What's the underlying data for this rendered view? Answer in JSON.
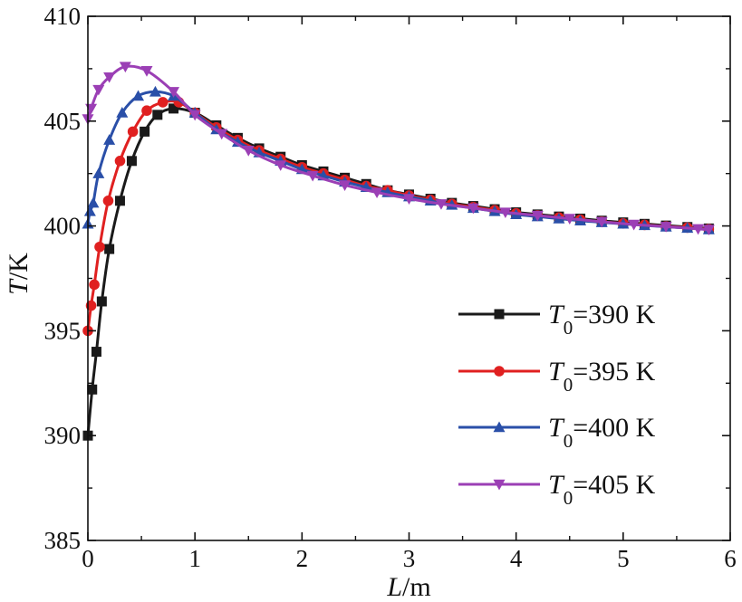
{
  "chart_data": {
    "type": "line",
    "title": "",
    "xlabel": {
      "symbol": "L",
      "unit": "/m"
    },
    "ylabel": {
      "symbol": "T",
      "unit": "/K"
    },
    "xlim": [
      0,
      6
    ],
    "ylim": [
      385,
      410
    ],
    "xticks": [
      "0",
      "1",
      "2",
      "3",
      "4",
      "5",
      "6"
    ],
    "yticks": [
      "385",
      "390",
      "395",
      "400",
      "405",
      "410"
    ],
    "grid": false,
    "legend_position": "right-center",
    "series": [
      {
        "name": "T0=390 K",
        "legend": {
          "symbol": "T",
          "subscript": "0",
          "text": "=390 K"
        },
        "color": "#1a1a1a",
        "marker": "square",
        "x": [
          0,
          0.04,
          0.08,
          0.13,
          0.2,
          0.3,
          0.41,
          0.53,
          0.65,
          0.8,
          1.0,
          1.2,
          1.4,
          1.6,
          1.8,
          2.0,
          2.2,
          2.4,
          2.6,
          2.8,
          3.0,
          3.2,
          3.4,
          3.6,
          3.8,
          4.0,
          4.2,
          4.4,
          4.6,
          4.8,
          5.0,
          5.2,
          5.4,
          5.6,
          5.8
        ],
        "y": [
          390.0,
          392.2,
          394.0,
          396.4,
          398.9,
          401.2,
          403.1,
          404.5,
          405.3,
          405.6,
          405.4,
          404.8,
          404.2,
          403.7,
          403.3,
          402.9,
          402.6,
          402.3,
          402.0,
          401.7,
          401.5,
          401.3,
          401.1,
          400.95,
          400.8,
          400.65,
          400.55,
          400.45,
          400.35,
          400.25,
          400.17,
          400.1,
          400.02,
          399.95,
          399.88
        ]
      },
      {
        "name": "T0=395 K",
        "legend": {
          "symbol": "T",
          "subscript": "0",
          "text": "=395 K"
        },
        "color": "#e02020",
        "marker": "circle",
        "x": [
          0,
          0.03,
          0.06,
          0.11,
          0.19,
          0.3,
          0.42,
          0.55,
          0.7,
          0.85,
          1.0,
          1.2,
          1.4,
          1.6,
          1.8,
          2.0,
          2.2,
          2.4,
          2.6,
          2.8,
          3.0,
          3.2,
          3.4,
          3.6,
          3.8,
          4.0,
          4.2,
          4.4,
          4.6,
          4.8,
          5.0,
          5.2,
          5.4,
          5.6,
          5.8
        ],
        "y": [
          395.0,
          396.2,
          397.2,
          399.0,
          401.2,
          403.1,
          404.5,
          405.5,
          405.9,
          405.9,
          405.4,
          404.7,
          404.1,
          403.6,
          403.2,
          402.8,
          402.5,
          402.2,
          401.9,
          401.7,
          401.45,
          401.25,
          401.05,
          400.9,
          400.75,
          400.6,
          400.5,
          400.4,
          400.3,
          400.2,
          400.12,
          400.05,
          399.98,
          399.92,
          399.85
        ]
      },
      {
        "name": "T0=400 K",
        "legend": {
          "symbol": "T",
          "subscript": "0",
          "text": "=400 K"
        },
        "color": "#2a4fa8",
        "marker": "triangle-up",
        "x": [
          0,
          0.02,
          0.05,
          0.1,
          0.2,
          0.32,
          0.47,
          0.63,
          0.8,
          1.0,
          1.2,
          1.4,
          1.6,
          1.8,
          2.0,
          2.2,
          2.4,
          2.6,
          2.8,
          3.0,
          3.2,
          3.4,
          3.6,
          3.8,
          4.0,
          4.2,
          4.4,
          4.6,
          4.8,
          5.0,
          5.2,
          5.4,
          5.6,
          5.8
        ],
        "y": [
          400.1,
          400.7,
          401.1,
          402.5,
          404.1,
          405.4,
          406.2,
          406.4,
          406.2,
          405.4,
          404.6,
          404.0,
          403.5,
          403.1,
          402.7,
          402.4,
          402.1,
          401.85,
          401.6,
          401.4,
          401.2,
          401.0,
          400.85,
          400.7,
          400.55,
          400.45,
          400.35,
          400.25,
          400.17,
          400.1,
          400.03,
          399.96,
          399.9,
          399.83
        ]
      },
      {
        "name": "T0=405 K",
        "legend": {
          "symbol": "T",
          "subscript": "0",
          "text": "=405 K"
        },
        "color": "#9b3fb5",
        "marker": "triangle-down",
        "x": [
          0,
          0.03,
          0.1,
          0.2,
          0.35,
          0.55,
          0.8,
          1.0,
          1.25,
          1.5,
          1.8,
          2.1,
          2.4,
          2.7,
          3.0,
          3.3,
          3.6,
          3.9,
          4.2,
          4.5,
          4.8,
          5.1,
          5.4,
          5.7,
          5.8
        ],
        "y": [
          405.1,
          405.6,
          406.5,
          407.1,
          407.6,
          407.4,
          406.4,
          405.3,
          404.4,
          403.6,
          402.9,
          402.4,
          401.95,
          401.6,
          401.3,
          401.05,
          400.85,
          400.65,
          400.5,
          400.35,
          400.2,
          400.07,
          399.97,
          399.86,
          399.83
        ]
      }
    ]
  }
}
